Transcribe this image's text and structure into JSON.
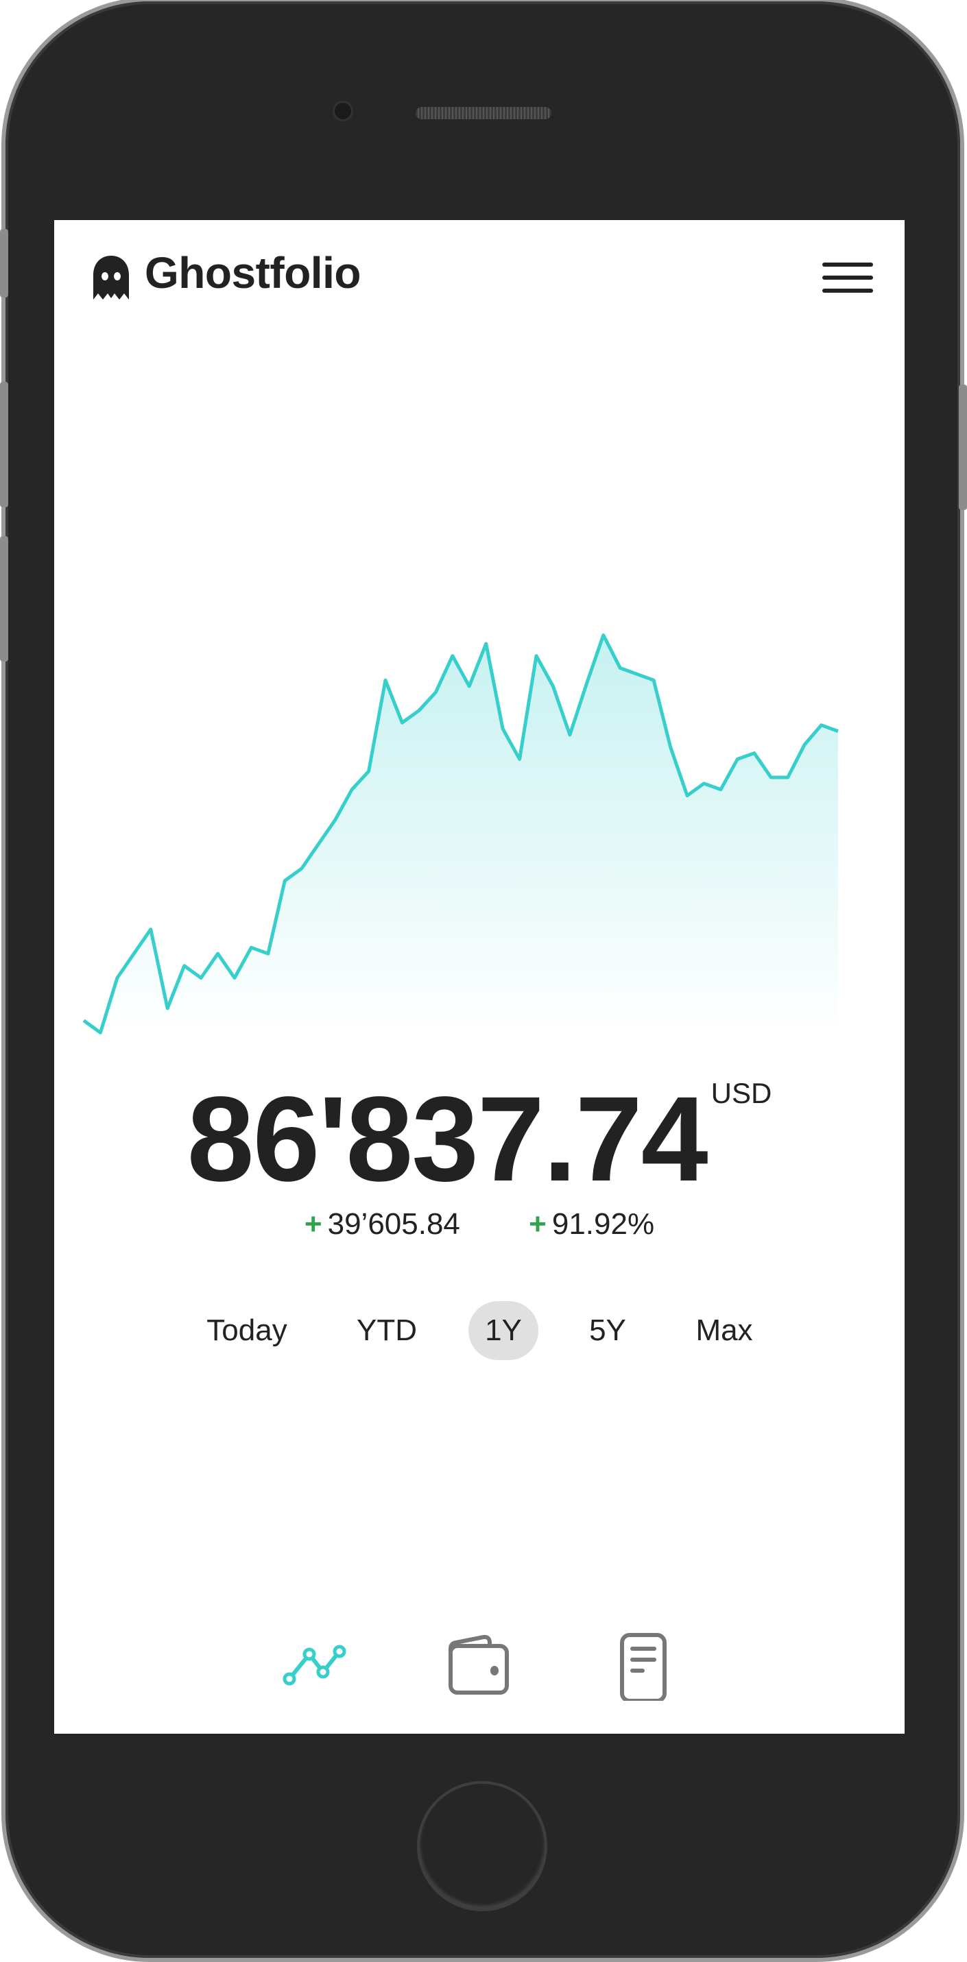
{
  "app": {
    "title": "Ghostfolio"
  },
  "header": {
    "logo_text": "Ghostfolio",
    "menu_icon": "hamburger-menu-icon"
  },
  "summary": {
    "value": "86'837.74",
    "currency": "USD",
    "change_absolute": "39’605.84",
    "change_percent": "91.92%",
    "change_sign": "+",
    "positive_color": "#2ea44f"
  },
  "ranges": {
    "items": [
      {
        "label": "Today",
        "active": false
      },
      {
        "label": "YTD",
        "active": false
      },
      {
        "label": "1Y",
        "active": true
      },
      {
        "label": "5Y",
        "active": false
      },
      {
        "label": "Max",
        "active": false
      }
    ]
  },
  "bottom_nav": {
    "items": [
      {
        "icon": "line-chart-icon",
        "active": true
      },
      {
        "icon": "wallet-icon",
        "active": false
      },
      {
        "icon": "document-icon",
        "active": false
      }
    ]
  },
  "colors": {
    "accent": "#36cfcc",
    "inactive_icon": "#777777",
    "text": "#222222"
  },
  "chart_data": {
    "type": "area",
    "range": "1Y",
    "axes_visible": false,
    "grid": false,
    "color": "#36cfcc",
    "values": [
      47232,
      45568,
      53054,
      56382,
      59710,
      48896,
      54718,
      53054,
      56382,
      53054,
      57214,
      56382,
      66364,
      68028,
      71356,
      74684,
      78845,
      81341,
      93820,
      87996,
      89660,
      92156,
      97148,
      92988,
      98812,
      87164,
      83004,
      97148,
      92988,
      86332,
      93320,
      99980,
      95488,
      94656,
      93820,
      84668,
      78013,
      79677,
      78845,
      83004,
      83836,
      80509,
      80509,
      84998,
      87663,
      86837
    ]
  }
}
